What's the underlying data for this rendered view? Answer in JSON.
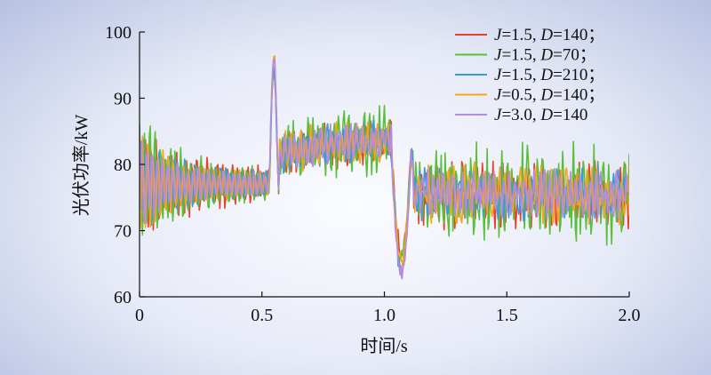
{
  "chart_data": {
    "type": "line",
    "xlabel": "时间/s",
    "ylabel": "光伏功率/kW",
    "xlim": [
      0,
      2.0
    ],
    "ylim": [
      60,
      100
    ],
    "x_ticks": [
      "0",
      "0.5",
      "1.0",
      "1.5",
      "2.0"
    ],
    "y_ticks": [
      "60",
      "70",
      "80",
      "90",
      "100"
    ],
    "legend_position": "top-right",
    "series": [
      {
        "name": "J=1.5, D=140；",
        "legend": {
          "J": "1.5",
          "D": "140；"
        },
        "color": "#e8412b",
        "peak": 95,
        "dip": 67,
        "steady_amplitude": 5.5
      },
      {
        "name": "J=1.5, D=70；",
        "legend": {
          "J": "1.5",
          "D": "70；"
        },
        "color": "#5bbf3a",
        "peak": 94,
        "dip": 66,
        "steady_amplitude": 8
      },
      {
        "name": "J=1.5, D=210；",
        "legend": {
          "J": "1.5",
          "D": "210；"
        },
        "color": "#3a9ad9",
        "peak": 94,
        "dip": 63.5,
        "steady_amplitude": 4.5
      },
      {
        "name": "J=0.5, D=140；",
        "legend": {
          "J": "0.5",
          "D": "140；"
        },
        "color": "#f5a51d",
        "peak": 97,
        "dip": 65,
        "steady_amplitude": 5
      },
      {
        "name": "J=3.0, D=140",
        "legend": {
          "J": "3.0",
          "D": "140"
        },
        "color": "#b48be0",
        "peak": 96,
        "dip": 64,
        "steady_amplitude": 4
      }
    ]
  }
}
